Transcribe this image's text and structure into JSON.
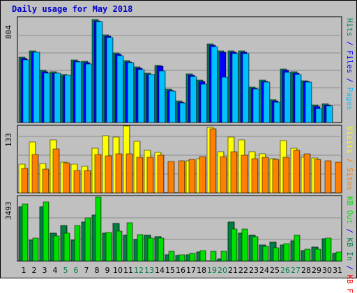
{
  "title": "Daily usage for May 2018",
  "colors": {
    "hits": "#00805c",
    "files": "#0000ff",
    "pages": "#00c0ff",
    "visits": "#ffff00",
    "sites": "#ff8000",
    "kb_in": "#008040",
    "kb_out": "#00e000",
    "kb_f": "#ff0000",
    "weekend_day": "#008040",
    "weekday_day": "#000000"
  },
  "chart_data": [
    {
      "type": "bar",
      "panel": "hits-files-pages",
      "ymax_label": "804",
      "ylim": [
        0,
        804
      ],
      "categories": [
        "1",
        "2",
        "3",
        "4",
        "5",
        "6",
        "7",
        "8",
        "9",
        "10",
        "11",
        "12",
        "13",
        "14",
        "15",
        "16",
        "17",
        "18",
        "19",
        "20",
        "21",
        "22",
        "23",
        "24",
        "25",
        "26",
        "27",
        "28",
        "29",
        "30",
        "31"
      ],
      "right_labels": [
        {
          "text": "Pages",
          "color": "#00c0ff"
        },
        {
          "text": " / ",
          "color": "#0000ff"
        },
        {
          "text": "Files",
          "color": "#0000ff"
        },
        {
          "text": " / ",
          "color": "#0000ff"
        },
        {
          "text": "Hits",
          "color": "#00805c"
        }
      ],
      "series": [
        {
          "name": "Hits",
          "values": [
            502,
            553,
            400,
            390,
            370,
            480,
            472,
            792,
            677,
            535,
            477,
            427,
            380,
            442,
            255,
            164,
            375,
            325,
            604,
            554,
            551,
            554,
            275,
            325,
            175,
            411,
            389,
            324,
            132,
            144,
            0
          ]
        },
        {
          "name": "Files",
          "values": [
            491,
            543,
            390,
            380,
            360,
            470,
            462,
            782,
            667,
            525,
            467,
            417,
            370,
            432,
            245,
            154,
            365,
            315,
            594,
            544,
            541,
            544,
            265,
            315,
            165,
            401,
            379,
            314,
            122,
            134,
            0
          ]
        },
        {
          "name": "Pages",
          "values": [
            482,
            539,
            383,
            382,
            366,
            464,
            450,
            779,
            656,
            514,
            459,
            407,
            369,
            399,
            242,
            151,
            352,
            296,
            585,
            349,
            529,
            528,
            259,
            311,
            158,
            384,
            368,
            312,
            108,
            127,
            0
          ]
        }
      ]
    },
    {
      "type": "bar",
      "panel": "visits-sites",
      "ymax_label": "133",
      "ylim": [
        0,
        133
      ],
      "categories": [
        "1",
        "2",
        "3",
        "4",
        "5",
        "6",
        "7",
        "8",
        "9",
        "10",
        "11",
        "12",
        "13",
        "14",
        "15",
        "16",
        "17",
        "18",
        "19",
        "20",
        "21",
        "22",
        "23",
        "24",
        "25",
        "26",
        "27",
        "28",
        "29",
        "30",
        "31"
      ],
      "right_labels": [
        {
          "text": "Sites",
          "color": "#ff8000"
        },
        {
          "text": " / ",
          "color": "#ff8000"
        },
        {
          "text": "Visits",
          "color": "#ffff00"
        }
      ],
      "series": [
        {
          "name": "Visits",
          "values": [
            58,
            102,
            59,
            107,
            61,
            57,
            53,
            89,
            115,
            112,
            134,
            103,
            85,
            81,
            0,
            0,
            65,
            68,
            132,
            82,
            112,
            106,
            83,
            78,
            68,
            105,
            90,
            72,
            70,
            0,
            0
          ]
        },
        {
          "name": "Sites",
          "values": [
            49,
            77,
            47,
            88,
            60,
            45,
            45,
            77,
            74,
            78,
            79,
            72,
            72,
            76,
            63,
            65,
            67,
            73,
            129,
            73,
            82,
            75,
            68,
            72,
            67,
            72,
            86,
            78,
            67,
            65,
            61
          ]
        }
      ]
    },
    {
      "type": "bar",
      "panel": "kbf-kbin-kbout",
      "ymax_label": "3493",
      "ylim": [
        0,
        3493
      ],
      "categories": [
        "1",
        "2",
        "3",
        "4",
        "5",
        "6",
        "7",
        "8",
        "9",
        "10",
        "11",
        "12",
        "13",
        "14",
        "15",
        "16",
        "17",
        "18",
        "19",
        "20",
        "21",
        "22",
        "23",
        "24",
        "25",
        "26",
        "27",
        "28",
        "29",
        "30",
        "31"
      ],
      "right_labels": [
        {
          "text": "KB F",
          "color": "#ff0000"
        },
        {
          "text": " / ",
          "color": "#0000ff"
        },
        {
          "text": "KB In",
          "color": "#008040"
        },
        {
          "text": " / ",
          "color": "#0000ff"
        },
        {
          "text": "KB Out",
          "color": "#00e000"
        }
      ],
      "series": [
        {
          "name": "KB F",
          "values": [
            2950,
            1145,
            2950,
            1535,
            1940,
            1125,
            2115,
            2520,
            1500,
            2050,
            1390,
            1190,
            1400,
            1330,
            330,
            290,
            355,
            485,
            0,
            130,
            2140,
            1510,
            1390,
            865,
            1040,
            885,
            1105,
            560,
            765,
            1220,
            400
          ]
        },
        {
          "name": "KB In",
          "values": [
            2950,
            1145,
            2950,
            1535,
            1940,
            1125,
            2115,
            2520,
            1500,
            2050,
            1390,
            1190,
            1400,
            1330,
            330,
            290,
            355,
            485,
            0,
            130,
            2140,
            1510,
            1390,
            865,
            1040,
            885,
            1105,
            560,
            765,
            1220,
            400
          ]
        },
        {
          "name": "KB Out",
          "values": [
            3120,
            1260,
            3230,
            1370,
            1505,
            1920,
            2370,
            3500,
            1570,
            1620,
            2080,
            1460,
            1270,
            1270,
            530,
            330,
            430,
            570,
            520,
            530,
            1760,
            1750,
            1310,
            810,
            730,
            960,
            1400,
            640,
            640,
            1260,
            510
          ]
        }
      ]
    }
  ]
}
